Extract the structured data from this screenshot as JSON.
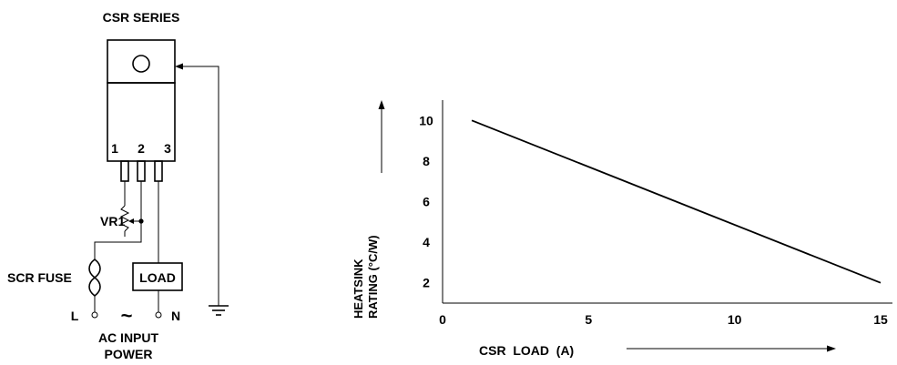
{
  "schematic": {
    "title": "CSR SERIES",
    "pin_labels": [
      "1",
      "2",
      "3"
    ],
    "vr1_label": "VR1",
    "fuse_label": "SCR FUSE",
    "load_label": "LOAD",
    "line_label": "L",
    "neutral_label": "N",
    "ac_symbol": "~",
    "ac_input_line1": "AC INPUT",
    "ac_input_line2": "POWER"
  },
  "chart_data": {
    "type": "line",
    "ylabel_line1": "HEATSINK",
    "ylabel_line2": "RATING  (°C/W)",
    "xlabel": "CSR  LOAD  (A)",
    "xlim": [
      0,
      15
    ],
    "ylim": [
      1,
      11
    ],
    "x_ticks": [
      "0",
      "5",
      "10",
      "15"
    ],
    "y_ticks": [
      "10",
      "8",
      "6",
      "4",
      "2"
    ],
    "series": [
      {
        "x": [
          1,
          15
        ],
        "y": [
          10,
          2
        ]
      }
    ],
    "grid": false
  }
}
